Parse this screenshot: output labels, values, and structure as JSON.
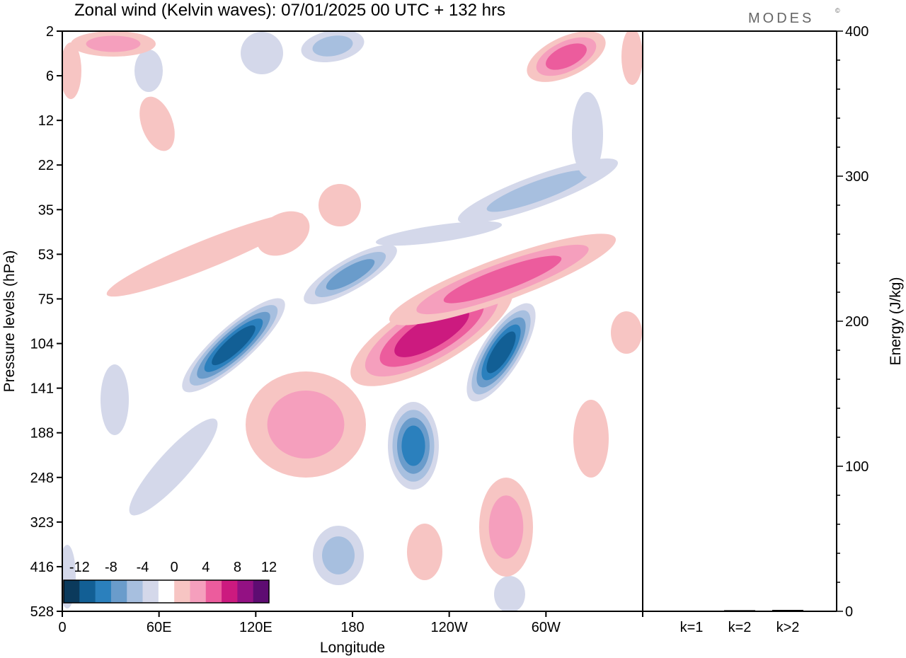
{
  "header": {
    "title": "Zonal wind (Kelvin waves):  07/01/2025  00 UTC  + 132 hrs",
    "brand": "MODES",
    "brand_mark": "©"
  },
  "chart_data": [
    {
      "type": "heatmap",
      "title": "Zonal wind (Kelvin waves):  07/01/2025  00 UTC  + 132 hrs",
      "xlabel": "Longitude",
      "ylabel": "Pressure levels (hPa)",
      "x_ticks": [
        "0",
        "60E",
        "120E",
        "180",
        "120W",
        "60W"
      ],
      "x_range_deg": [
        0,
        360
      ],
      "y_ticks": [
        "2",
        "6",
        "12",
        "22",
        "35",
        "53",
        "75",
        "104",
        "141",
        "188",
        "248",
        "323",
        "416",
        "528"
      ],
      "y_scale": "log-pressure (top 2 hPa, bottom 528 hPa)",
      "colorbar": {
        "labels": [
          "-12",
          "-8",
          "-4",
          "0",
          "4",
          "8",
          "12"
        ],
        "colors": [
          "#0b3a5c",
          "#125f95",
          "#2b80bd",
          "#6a9ccb",
          "#a7bfdf",
          "#d4d8ea",
          "#ffffff",
          "#f7c5c3",
          "#f59fbd",
          "#ec5c9d",
          "#cc1a7f",
          "#931183",
          "#5e0c72"
        ]
      },
      "features": [
        {
          "sign": "negative",
          "peak": -12,
          "lon": 103,
          "level": 110
        },
        {
          "sign": "negative",
          "peak": -12,
          "lon": 283,
          "level": 110
        },
        {
          "sign": "negative",
          "peak": -8,
          "lon": 220,
          "level": 190
        },
        {
          "sign": "negative",
          "peak": -6,
          "lon": 178,
          "level": 70
        },
        {
          "sign": "negative",
          "peak": -6,
          "lon": 175,
          "level": 400
        },
        {
          "sign": "positive",
          "peak": 8,
          "lon": 215,
          "level": 115
        },
        {
          "sign": "positive",
          "peak": 8,
          "lon": 280,
          "level": 75
        },
        {
          "sign": "positive",
          "peak": 6,
          "lon": 147,
          "level": 170
        },
        {
          "sign": "positive",
          "peak": 6,
          "lon": 278,
          "level": 350
        },
        {
          "sign": "positive",
          "peak": 5,
          "lon": 320,
          "level": 5
        }
      ]
    },
    {
      "type": "bar",
      "ylabel": "Energy (J/kg)",
      "categories": [
        "k=1",
        "k=2",
        "k>2"
      ],
      "values": [
        0.4,
        0.8,
        1.0
      ],
      "ylim": [
        0,
        400
      ],
      "y_ticks": [
        "0",
        "100",
        "200",
        "300",
        "400"
      ]
    }
  ]
}
